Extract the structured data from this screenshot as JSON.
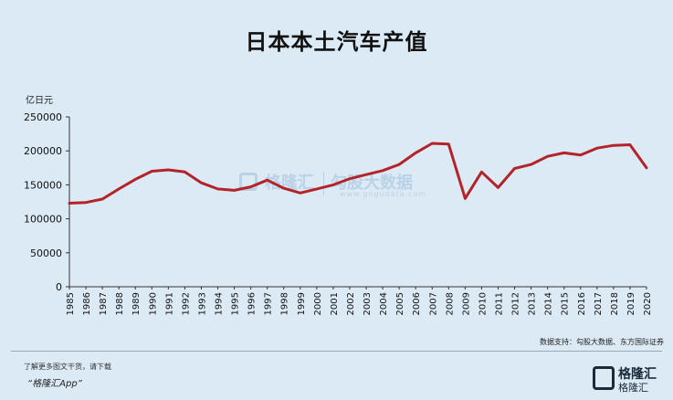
{
  "header": {
    "title": "日本本土汽车产值"
  },
  "watermark": {
    "name": "格隆汇",
    "name2": "勾股大数据",
    "domain": "www.gogudata.com"
  },
  "footer": {
    "source": "数据支持：勾股大数据、东方国际证券",
    "line1": "了解更多图文干货，请下载",
    "line2": "“格隆汇App”",
    "brand_name": "格隆汇",
    "brand_domain": "格隆汇"
  },
  "colors": {
    "line": "#b4232a",
    "background": "#dbeaf5",
    "axis": "#333333"
  },
  "chart_data": {
    "type": "line",
    "title": "日本本土汽车产值",
    "ylabel": "亿日元",
    "xlabel": "",
    "ylim": [
      0,
      250000
    ],
    "yticks": [
      0,
      50000,
      100000,
      150000,
      200000,
      250000
    ],
    "grid": false,
    "x": [
      "1985",
      "1986",
      "1987",
      "1988",
      "1989",
      "1990",
      "1991",
      "1992",
      "1993",
      "1994",
      "1995",
      "1996",
      "1997",
      "1998",
      "1999",
      "2000",
      "2001",
      "2002",
      "2003",
      "2004",
      "2005",
      "2006",
      "2007",
      "2008",
      "2009",
      "2010",
      "2011",
      "2012",
      "2013",
      "2014",
      "2015",
      "2016",
      "2017",
      "2018",
      "2019",
      "2020"
    ],
    "series": [
      {
        "values": [
          123000,
          124000,
          129000,
          144000,
          158000,
          170000,
          172000,
          169000,
          153000,
          144000,
          142000,
          147000,
          157000,
          145000,
          138000,
          144000,
          150000,
          159000,
          165000,
          171000,
          180000,
          197000,
          211000,
          210000,
          130000,
          169000,
          146000,
          174000,
          180000,
          192000,
          197000,
          194000,
          204000,
          208000,
          209000,
          175000
        ]
      }
    ]
  }
}
